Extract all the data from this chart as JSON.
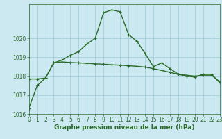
{
  "line1_x": [
    0,
    1,
    2,
    3,
    4,
    5,
    6,
    7,
    8,
    9,
    10,
    11,
    12,
    13,
    14,
    15,
    16,
    17,
    18,
    19,
    20,
    21,
    22,
    23
  ],
  "line1_y": [
    1016.3,
    1017.5,
    1017.9,
    1018.7,
    1018.85,
    1019.1,
    1019.3,
    1019.7,
    1020.0,
    1021.35,
    1021.5,
    1021.4,
    1020.2,
    1019.85,
    1019.2,
    1018.5,
    1018.7,
    1018.4,
    1018.1,
    1018.0,
    1017.95,
    1018.1,
    1018.1,
    1017.65
  ],
  "line2_x": [
    0,
    1,
    2,
    3,
    4,
    5,
    6,
    7,
    8,
    9,
    10,
    11,
    12,
    13,
    14,
    15,
    16,
    17,
    18,
    19,
    20,
    21,
    22,
    23
  ],
  "line2_y": [
    1017.85,
    1017.85,
    1017.9,
    1018.7,
    1018.75,
    1018.72,
    1018.7,
    1018.68,
    1018.65,
    1018.63,
    1018.6,
    1018.58,
    1018.55,
    1018.52,
    1018.48,
    1018.4,
    1018.3,
    1018.2,
    1018.1,
    1018.05,
    1018.0,
    1018.05,
    1018.05,
    1017.7
  ],
  "line_color": "#2a6a2a",
  "bg_color": "#cce8f0",
  "grid_color": "#99ccd8",
  "ylim": [
    1016.0,
    1021.8
  ],
  "xlim": [
    0,
    23
  ],
  "yticks": [
    1016,
    1017,
    1018,
    1019,
    1020
  ],
  "xticks": [
    0,
    1,
    2,
    3,
    4,
    5,
    6,
    7,
    8,
    9,
    10,
    11,
    12,
    13,
    14,
    15,
    16,
    17,
    18,
    19,
    20,
    21,
    22,
    23
  ],
  "xlabel": "Graphe pression niveau de la mer (hPa)",
  "marker": "+",
  "marker_size": 3.5,
  "linewidth": 1.0,
  "tick_fontsize": 5.5,
  "label_fontsize": 6.5
}
